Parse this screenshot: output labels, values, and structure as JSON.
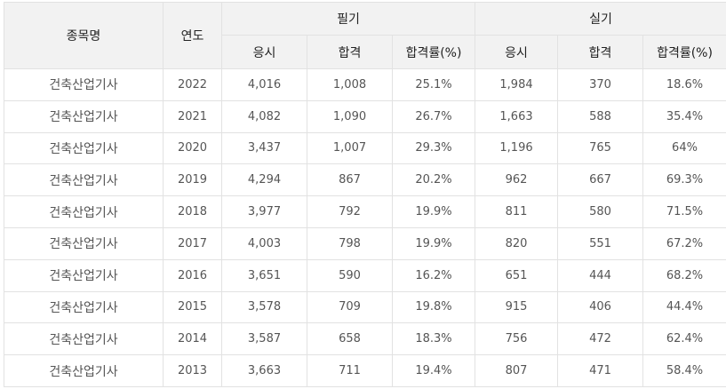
{
  "table": {
    "headers": {
      "item": "종목명",
      "year": "연도",
      "written_group": "필기",
      "practical_group": "실기",
      "sub": [
        "응시",
        "합격",
        "합격률(%)",
        "응시",
        "합격",
        "합격률(%)"
      ]
    },
    "rows": [
      {
        "name": "건축산업기사",
        "year": "2022",
        "w_applied": "4,016",
        "w_passed": "1,008",
        "w_rate": "25.1%",
        "p_applied": "1,984",
        "p_passed": "370",
        "p_rate": "18.6%"
      },
      {
        "name": "건축산업기사",
        "year": "2021",
        "w_applied": "4,082",
        "w_passed": "1,090",
        "w_rate": "26.7%",
        "p_applied": "1,663",
        "p_passed": "588",
        "p_rate": "35.4%"
      },
      {
        "name": "건축산업기사",
        "year": "2020",
        "w_applied": "3,437",
        "w_passed": "1,007",
        "w_rate": "29.3%",
        "p_applied": "1,196",
        "p_passed": "765",
        "p_rate": "64%"
      },
      {
        "name": "건축산업기사",
        "year": "2019",
        "w_applied": "4,294",
        "w_passed": "867",
        "w_rate": "20.2%",
        "p_applied": "962",
        "p_passed": "667",
        "p_rate": "69.3%"
      },
      {
        "name": "건축산업기사",
        "year": "2018",
        "w_applied": "3,977",
        "w_passed": "792",
        "w_rate": "19.9%",
        "p_applied": "811",
        "p_passed": "580",
        "p_rate": "71.5%"
      },
      {
        "name": "건축산업기사",
        "year": "2017",
        "w_applied": "4,003",
        "w_passed": "798",
        "w_rate": "19.9%",
        "p_applied": "820",
        "p_passed": "551",
        "p_rate": "67.2%"
      },
      {
        "name": "건축산업기사",
        "year": "2016",
        "w_applied": "3,651",
        "w_passed": "590",
        "w_rate": "16.2%",
        "p_applied": "651",
        "p_passed": "444",
        "p_rate": "68.2%"
      },
      {
        "name": "건축산업기사",
        "year": "2015",
        "w_applied": "3,578",
        "w_passed": "709",
        "w_rate": "19.8%",
        "p_applied": "915",
        "p_passed": "406",
        "p_rate": "44.4%"
      },
      {
        "name": "건축산업기사",
        "year": "2014",
        "w_applied": "3,587",
        "w_passed": "658",
        "w_rate": "18.3%",
        "p_applied": "756",
        "p_passed": "472",
        "p_rate": "62.4%"
      },
      {
        "name": "건축산업기사",
        "year": "2013",
        "w_applied": "3,663",
        "w_passed": "711",
        "w_rate": "19.4%",
        "p_applied": "807",
        "p_passed": "471",
        "p_rate": "58.4%"
      }
    ]
  },
  "colors": {
    "header_bg": "#f2f2f2",
    "border": "#e2e2e2",
    "text": "#555555"
  }
}
